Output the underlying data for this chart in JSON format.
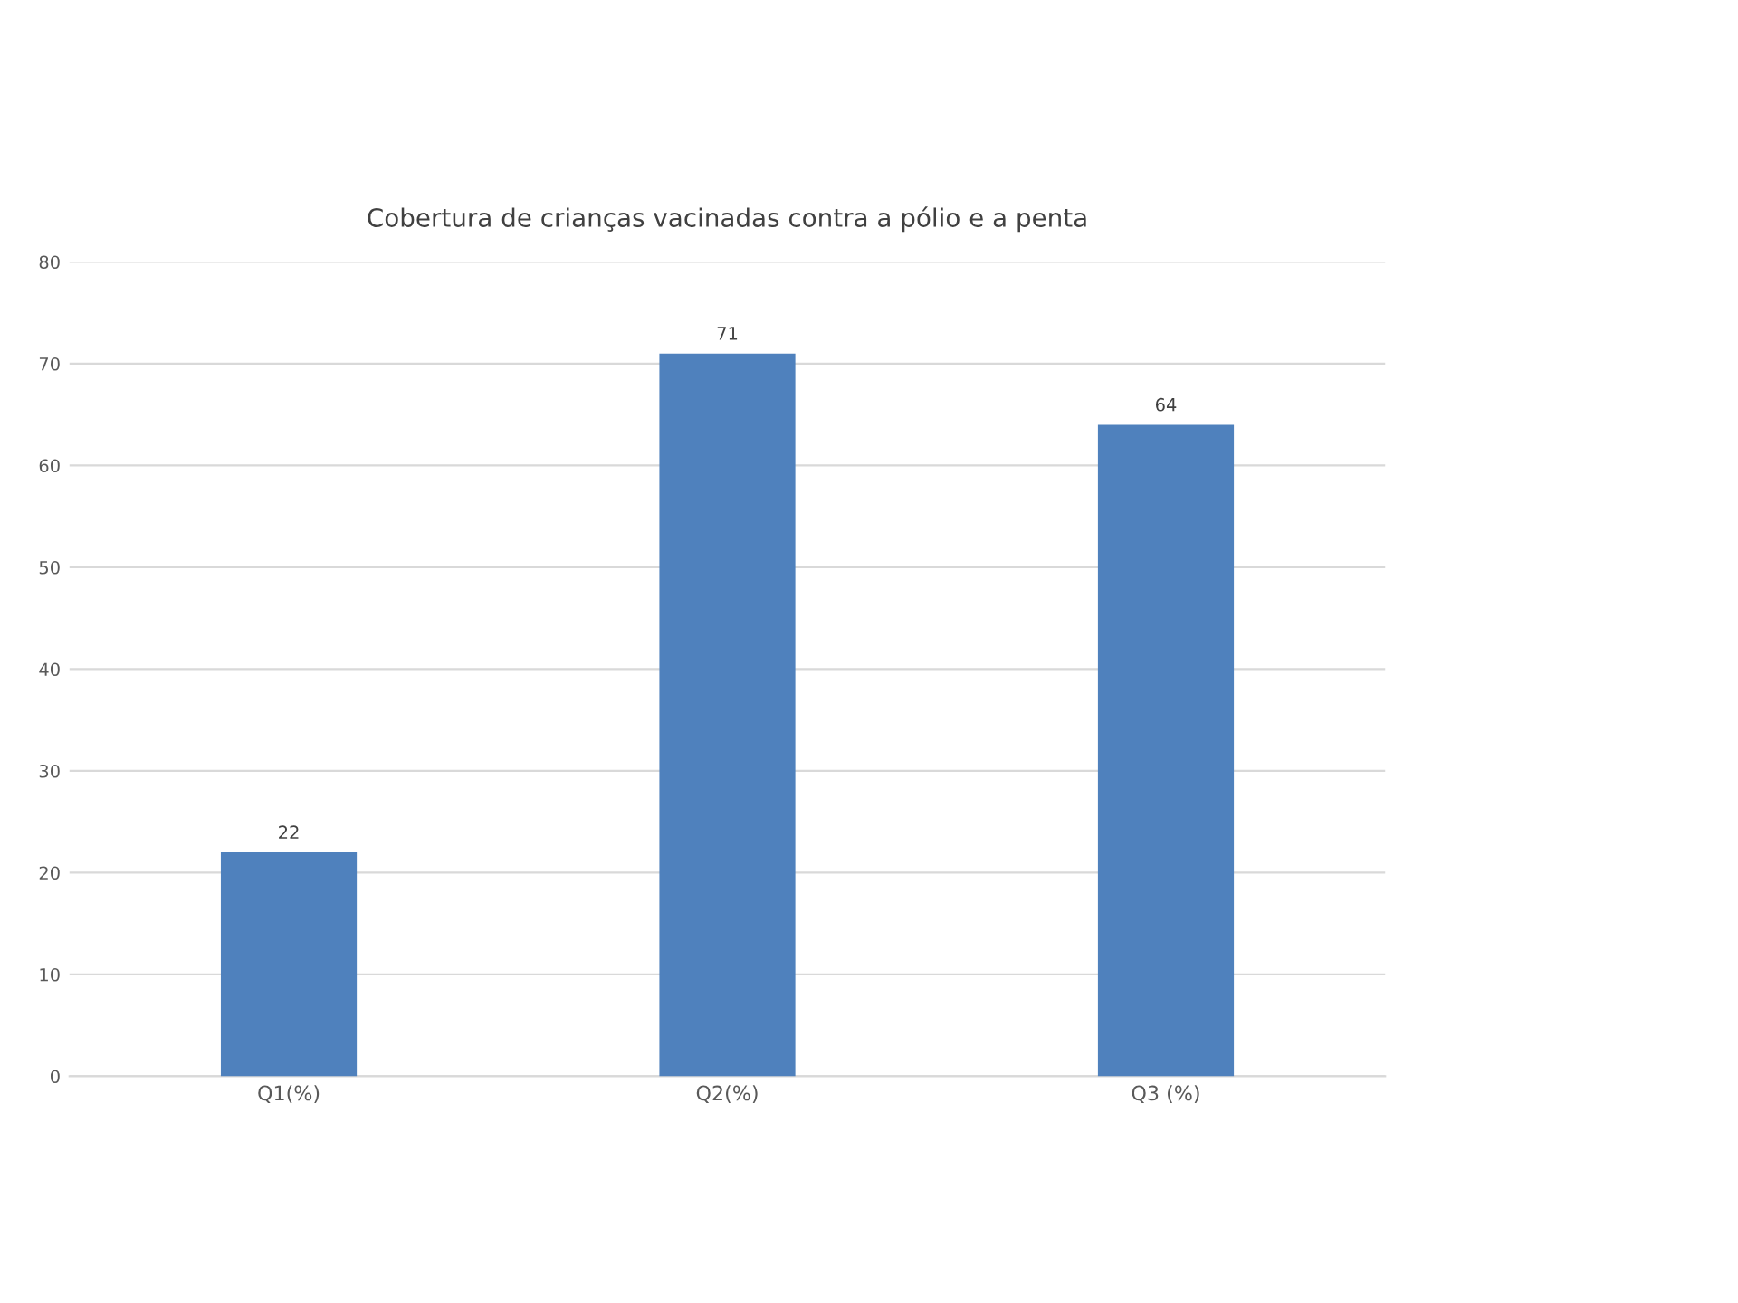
{
  "chart_data": {
    "type": "bar",
    "title": "Cobertura de crianças vacinadas contra a pólio e a penta",
    "categories": [
      "Q1(%)",
      "Q2(%)",
      "Q3 (%)"
    ],
    "values": [
      22,
      71,
      64
    ],
    "color": "#4f81bd",
    "ylim": [
      0,
      80
    ],
    "yticks": [
      0,
      10,
      20,
      30,
      40,
      50,
      60,
      70,
      80
    ],
    "grid": "y",
    "data_labels": true
  }
}
